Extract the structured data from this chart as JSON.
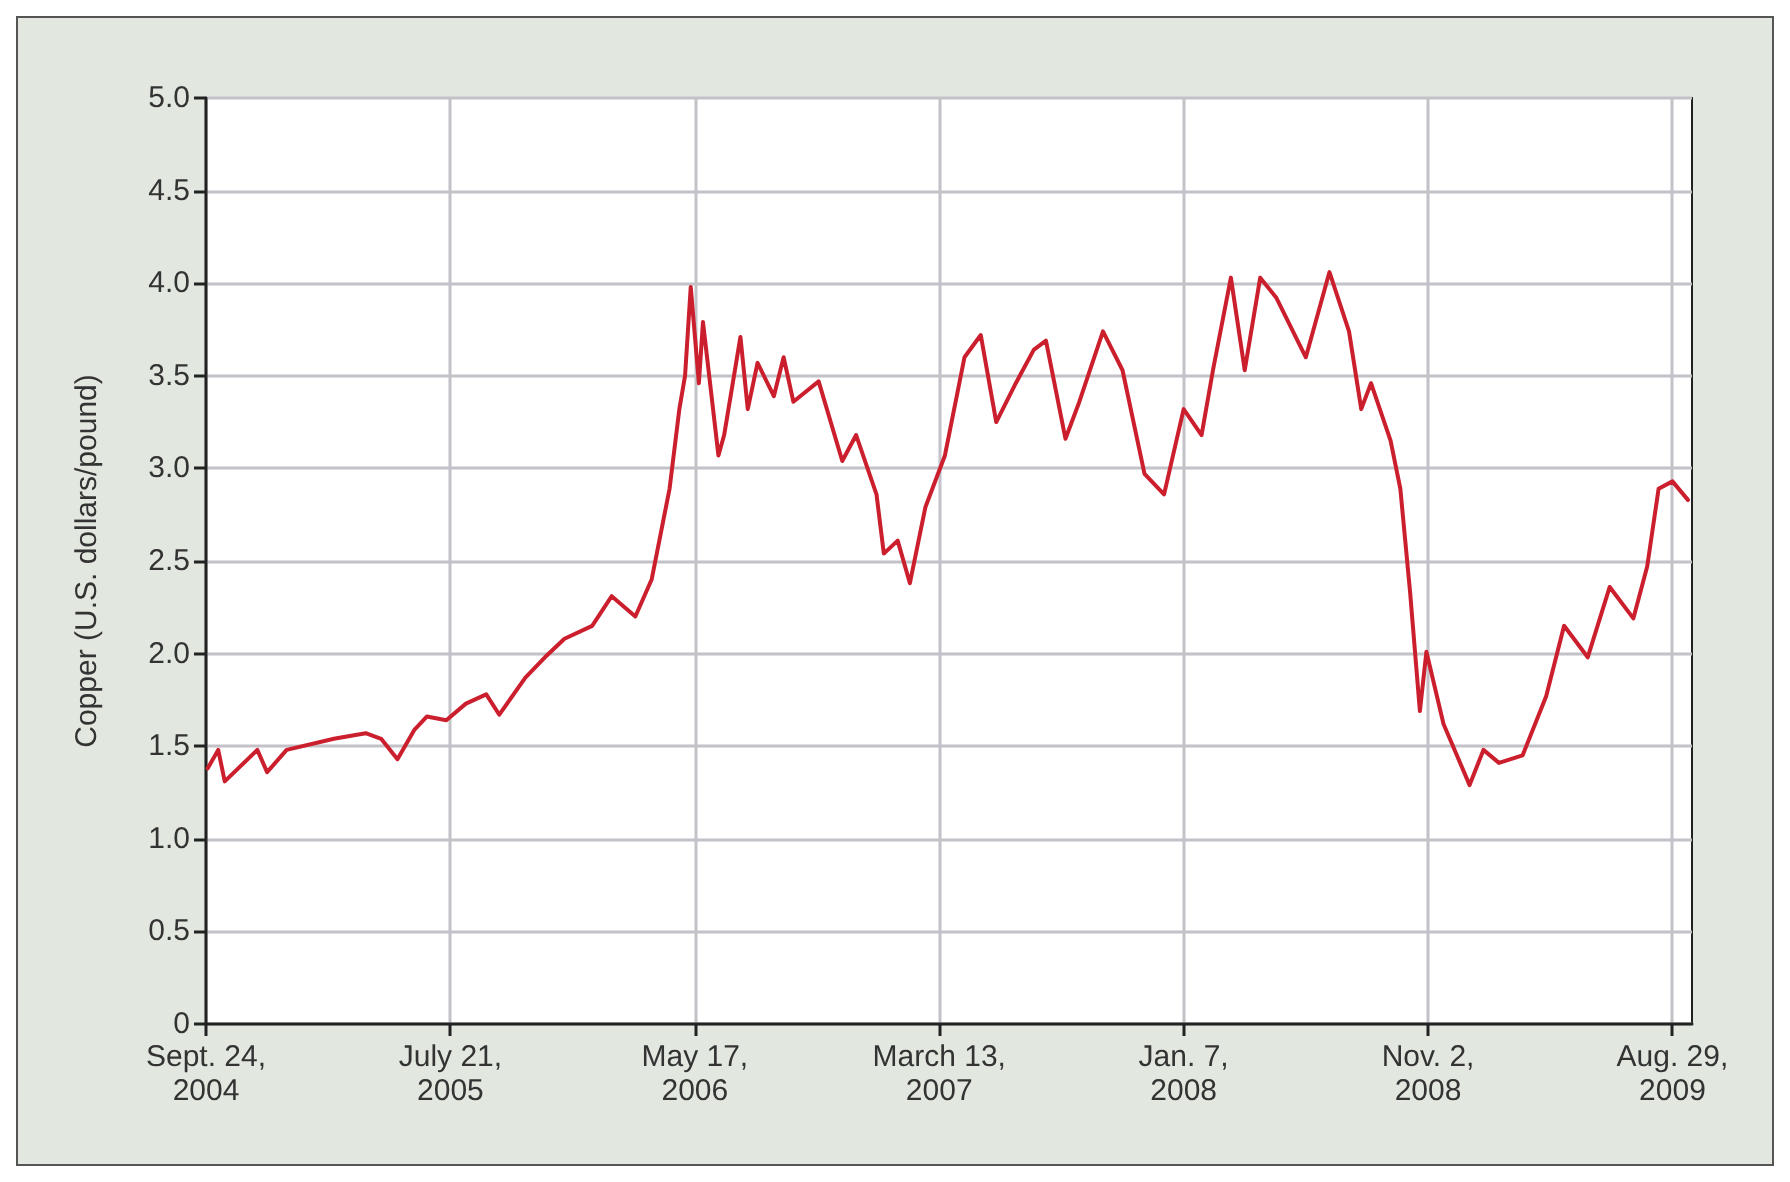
{
  "chart_data": {
    "type": "line",
    "ylabel": "Copper (U.S. dollars/pound)",
    "x": [
      "2004-09-26",
      "2004-10-09",
      "2004-10-17",
      "2004-11-26",
      "2004-12-08",
      "2005-01-01",
      "2005-02-28",
      "2005-04-08",
      "2005-04-27",
      "2005-05-17",
      "2005-06-07",
      "2005-06-22",
      "2005-07-16",
      "2005-08-09",
      "2005-09-03",
      "2005-09-19",
      "2005-10-21",
      "2005-11-14",
      "2005-12-08",
      "2006-01-11",
      "2006-02-04",
      "2006-03-05",
      "2006-03-25",
      "2006-04-16",
      "2006-04-28",
      "2006-05-05",
      "2006-05-12",
      "2006-05-22",
      "2006-05-27",
      "2006-06-15",
      "2006-06-22",
      "2006-07-12",
      "2006-07-21",
      "2006-08-02",
      "2006-08-22",
      "2006-09-03",
      "2006-09-15",
      "2006-10-16",
      "2006-11-14",
      "2006-12-01",
      "2006-12-26",
      "2007-01-04",
      "2007-01-21",
      "2007-02-05",
      "2007-02-24",
      "2007-03-20",
      "2007-04-13",
      "2007-05-03",
      "2007-05-22",
      "2007-06-15",
      "2007-07-07",
      "2007-07-22",
      "2007-08-15",
      "2007-09-01",
      "2007-09-30",
      "2007-10-24",
      "2007-11-20",
      "2007-12-14",
      "2008-01-07",
      "2008-01-29",
      "2008-02-12",
      "2008-03-05",
      "2008-03-22",
      "2008-04-10",
      "2008-04-30",
      "2008-06-05",
      "2008-07-04",
      "2008-07-28",
      "2008-08-12",
      "2008-08-24",
      "2008-09-17",
      "2008-09-29",
      "2008-10-11",
      "2008-10-23",
      "2008-10-31",
      "2008-11-21",
      "2008-12-23",
      "2009-01-09",
      "2009-01-28",
      "2009-02-26",
      "2009-03-27",
      "2009-04-18",
      "2009-05-17",
      "2009-06-13",
      "2009-07-12",
      "2009-07-29",
      "2009-08-12",
      "2009-08-29",
      "2009-09-17"
    ],
    "series": [
      {
        "color": "#cc1f2e",
        "values": [
          1.38,
          1.48,
          1.31,
          1.48,
          1.36,
          1.48,
          1.54,
          1.57,
          1.54,
          1.43,
          1.59,
          1.66,
          1.64,
          1.73,
          1.78,
          1.67,
          1.87,
          1.98,
          2.08,
          2.15,
          2.31,
          2.2,
          2.4,
          2.89,
          3.32,
          3.5,
          3.98,
          3.46,
          3.79,
          3.07,
          3.18,
          3.71,
          3.32,
          3.57,
          3.39,
          3.6,
          3.36,
          3.47,
          3.04,
          3.18,
          2.86,
          2.54,
          2.61,
          2.38,
          2.79,
          3.07,
          3.6,
          3.72,
          3.25,
          3.46,
          3.64,
          3.69,
          3.16,
          3.36,
          3.74,
          3.53,
          2.97,
          2.86,
          3.32,
          3.18,
          3.53,
          4.03,
          3.53,
          4.03,
          3.92,
          3.6,
          4.06,
          3.74,
          3.32,
          3.46,
          3.15,
          2.89,
          2.33,
          1.69,
          2.01,
          1.62,
          1.29,
          1.48,
          1.41,
          1.45,
          1.77,
          2.15,
          1.98,
          2.36,
          2.19,
          2.47,
          2.89,
          2.93,
          2.83
        ]
      }
    ],
    "xlim": [
      "2004-09-24",
      "2009-09-22"
    ],
    "xticks": [
      {
        "value": "2004-09-24",
        "label": "Sept. 24, 2004"
      },
      {
        "value": "2005-07-21",
        "label": "July 21, 2005"
      },
      {
        "value": "2006-05-17",
        "label": "May 17, 2006"
      },
      {
        "value": "2007-03-13",
        "label": "March 13, 2007"
      },
      {
        "value": "2008-01-07",
        "label": "Jan. 7, 2008"
      },
      {
        "value": "2008-11-02",
        "label": "Nov. 2, 2008"
      },
      {
        "value": "2009-08-29",
        "label": "Aug. 29, 2009"
      }
    ],
    "ylim": [
      0,
      5
    ],
    "yticks": [
      0,
      0.5,
      {
        "value": 1,
        "label": "1.0"
      },
      1.5,
      {
        "value": 2,
        "label": "2.0"
      },
      2.5,
      {
        "value": 3,
        "label": "3.0"
      },
      3.5,
      {
        "value": 4,
        "label": "4.0"
      },
      4.5,
      {
        "value": 5,
        "label": "5.0"
      }
    ],
    "grid": true,
    "marker": "none",
    "line_style": "solid"
  }
}
